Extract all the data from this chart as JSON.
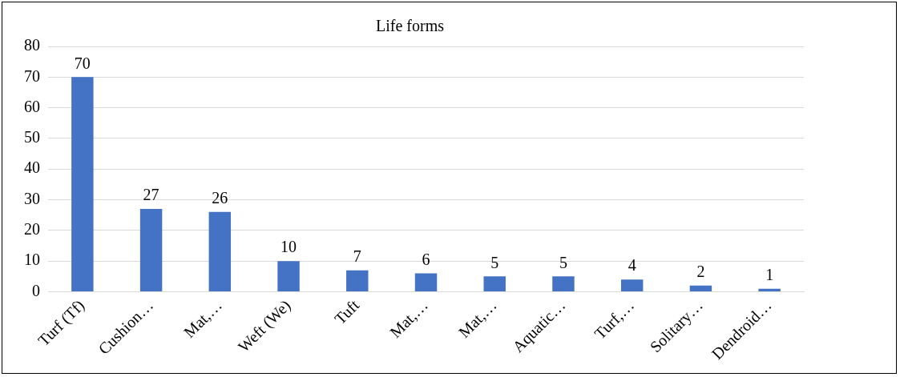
{
  "chart_data": {
    "type": "bar",
    "title": "Life forms",
    "categories": [
      "Turf (Tf)",
      "Cushion…",
      "Mat,…",
      "Weft (We)",
      "Tuft",
      "Mat,…",
      "Mat,…",
      "Aquatic…",
      "Turf,…",
      "Solitary…",
      "Dendroid…"
    ],
    "values": [
      70,
      27,
      26,
      10,
      7,
      6,
      5,
      5,
      4,
      2,
      1
    ],
    "color": "#4472c4",
    "ylim": [
      0,
      80
    ],
    "yticks": [
      0,
      10,
      20,
      30,
      40,
      50,
      60,
      70,
      80
    ],
    "grid": "y",
    "data_labels": true,
    "legend": false
  }
}
